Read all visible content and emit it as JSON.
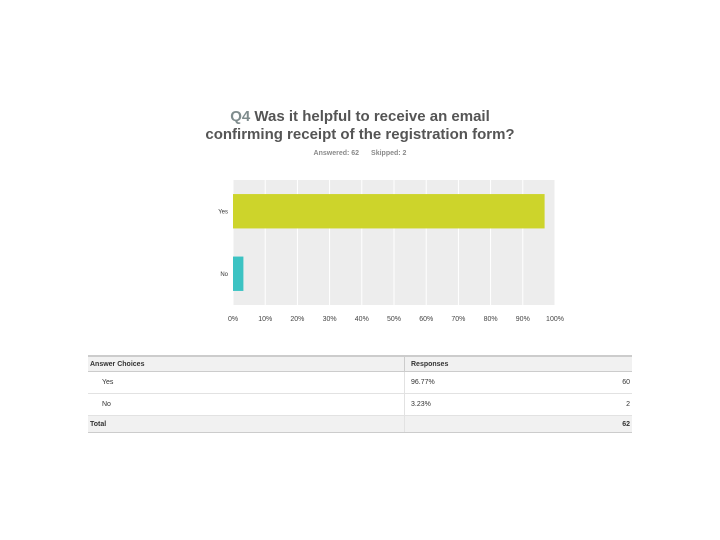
{
  "question": {
    "number": "Q4",
    "text": "Was it helpful to receive an email confirming receipt of the registration form?",
    "answered": "Answered: 62",
    "skipped": "Skipped: 2"
  },
  "colors": {
    "yes": "#cdd42b",
    "no": "#3cc3c3",
    "plot_bg": "#ededed",
    "grid": "#ffffff"
  },
  "chart_data": {
    "type": "bar",
    "orientation": "horizontal",
    "categories": [
      "Yes",
      "No"
    ],
    "values": [
      96.77,
      3.23
    ],
    "xlim": [
      0,
      100
    ],
    "x_ticks": [
      "0%",
      "10%",
      "20%",
      "30%",
      "40%",
      "50%",
      "60%",
      "70%",
      "80%",
      "90%",
      "100%"
    ],
    "grid": true
  },
  "table": {
    "headers": {
      "choice": "Answer Choices",
      "responses": "Responses"
    },
    "rows": [
      {
        "choice": "Yes",
        "percent": "96.77%",
        "count": "60"
      },
      {
        "choice": "No",
        "percent": "3.23%",
        "count": "2"
      }
    ],
    "total": {
      "label": "Total",
      "count": "62"
    }
  }
}
